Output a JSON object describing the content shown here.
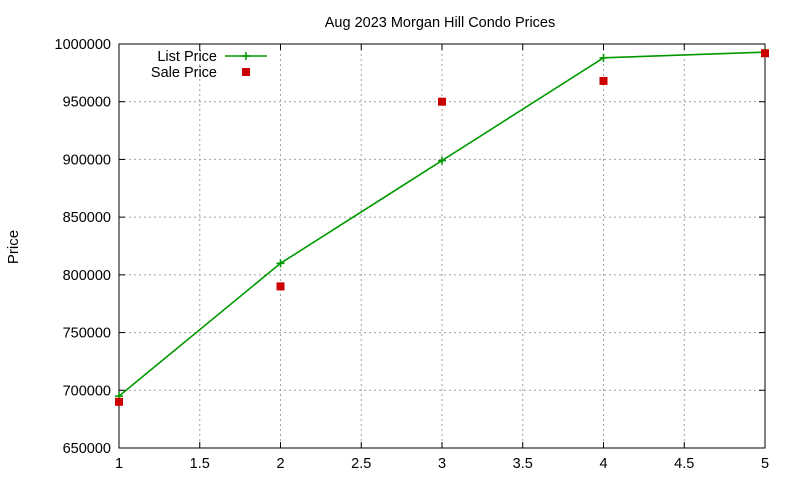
{
  "chart_data": {
    "type": "line",
    "title": "Aug 2023 Morgan Hill Condo Prices",
    "xlabel": "",
    "ylabel": "Price",
    "xlim": [
      1,
      5
    ],
    "ylim": [
      650000,
      1000000
    ],
    "xticks": [
      1,
      1.5,
      2,
      2.5,
      3,
      3.5,
      4,
      4.5,
      5
    ],
    "xtick_labels": [
      "1",
      "1.5",
      "2",
      "2.5",
      "3",
      "3.5",
      "4",
      "4.5",
      "5"
    ],
    "yticks": [
      650000,
      700000,
      750000,
      800000,
      850000,
      900000,
      950000,
      1000000
    ],
    "ytick_labels": [
      "650000",
      "700000",
      "750000",
      "800000",
      "850000",
      "900000",
      "950000",
      "1000000"
    ],
    "grid": true,
    "legend_position": "top-left",
    "series": [
      {
        "name": "List Price",
        "style": "line+cross",
        "color": "#009900",
        "x": [
          1,
          2,
          3,
          4,
          5
        ],
        "y": [
          695000,
          810000,
          899000,
          988000,
          993000
        ]
      },
      {
        "name": "Sale Price",
        "style": "square-points",
        "color": "#cc0000",
        "x": [
          1,
          2,
          3,
          4,
          5
        ],
        "y": [
          690000,
          790000,
          950000,
          968000,
          992000
        ]
      }
    ]
  }
}
